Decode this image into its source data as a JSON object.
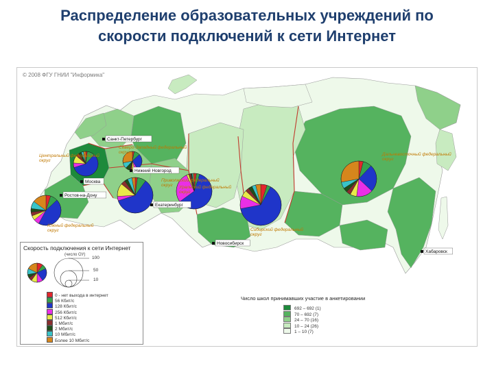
{
  "title": {
    "line1": "Распределение образовательных учреждений по",
    "line2": "скорости подключений к сети Интернет"
  },
  "map": {
    "copyright": "© 2008 ФГУ ГНИИ \"Информика\"",
    "colors": {
      "sea": "#ffffff",
      "border": "#c0392b",
      "level_1": "#1d8a3b",
      "level_2": "#55b35f",
      "level_3": "#8fd08a",
      "level_4": "#c8ebc0",
      "level_5": "#eef9ea"
    },
    "cities": [
      "Санкт-Петербург",
      "Москва",
      "Нижний Новгород",
      "Ростов-на-Дону",
      "Екатеринбург",
      "Новосибирск",
      "Хабаровск"
    ],
    "districts": [
      "Северо-Западный федеральный округ",
      "Центральный федеральный округ",
      "Приволжский федеральный округ",
      "Южный федеральный округ",
      "Уральский федеральный округ",
      "Сибирский федеральный округ",
      "Дальневосточный федеральный округ"
    ]
  },
  "speed_legend": {
    "title": "Скорость подключения к сети Интернет",
    "unit": "(число ОУ)",
    "scale": [
      "100",
      "50",
      "10"
    ],
    "items": [
      {
        "label": "0 - нет выхода в интернет",
        "color": "#e3262d"
      },
      {
        "label": "56 Кбит/с",
        "color": "#36a24d"
      },
      {
        "label": "128 Кбит/с",
        "color": "#1f35c9"
      },
      {
        "label": "256 Кбит/с",
        "color": "#ea2fe6"
      },
      {
        "label": "512 Кбит/с",
        "color": "#e9e94a"
      },
      {
        "label": "1 Мбит/с",
        "color": "#8a2e2e"
      },
      {
        "label": "2 Мбит/с",
        "color": "#1f4f1a"
      },
      {
        "label": "10 Мбит/с",
        "color": "#39c4c8"
      },
      {
        "label": "Более 10 Мбит/с",
        "color": "#d6861c"
      }
    ]
  },
  "density_legend": {
    "title": "Число школ принимавших участие в анкетировании",
    "items": [
      {
        "range": "692 – 692",
        "count": "(1)",
        "color": "#1d8a3b"
      },
      {
        "range": "70 – 692",
        "count": "(7)",
        "color": "#55b35f"
      },
      {
        "range": "24 – 70",
        "count": "(16)",
        "color": "#8fd08a"
      },
      {
        "range": "10 – 24",
        "count": "(26)",
        "color": "#c8ebc0"
      },
      {
        "range": "1 – 10",
        "count": "(7)",
        "color": "#eef9ea"
      }
    ]
  },
  "chart_data": [
    {
      "type": "pie",
      "district": "Северо-Западный федеральный округ",
      "categories": [
        "0",
        "56 Кбит/с",
        "128 Кбит/с",
        "256 Кбит/с",
        "512 Кбит/с",
        "1 Мбит/с",
        "2 Мбит/с",
        "10 Мбит/с",
        "Более 10 Мбит/с"
      ],
      "values": [
        5,
        8,
        45,
        6,
        5,
        4,
        4,
        8,
        15
      ]
    },
    {
      "type": "pie",
      "district": "Центральный федеральный округ",
      "categories": [
        "0",
        "56 Кбит/с",
        "128 Кбит/с",
        "256 Кбит/с",
        "512 Кбит/с",
        "1 Мбит/с",
        "2 Мбит/с",
        "10 Мбит/с",
        "Более 10 Мбит/с"
      ],
      "values": [
        2,
        8,
        60,
        4,
        12,
        4,
        3,
        4,
        3
      ]
    },
    {
      "type": "pie",
      "district": "Приволжский федеральный округ",
      "categories": [
        "0",
        "56 Кбит/с",
        "128 Кбит/с",
        "256 Кбит/с",
        "512 Кбит/с",
        "1 Мбит/с",
        "2 Мбит/с",
        "10 Мбит/с",
        "Более 10 Мбит/с"
      ],
      "values": [
        2,
        10,
        58,
        6,
        10,
        4,
        4,
        3,
        3
      ]
    },
    {
      "type": "pie",
      "district": "Южный федеральный округ",
      "categories": [
        "0",
        "56 Кбит/с",
        "128 Кбит/с",
        "256 Кбит/с",
        "512 Кбит/с",
        "1 Мбит/с",
        "2 Мбит/с",
        "10 Мбит/с",
        "Более 10 Мбит/с"
      ],
      "values": [
        3,
        10,
        28,
        5,
        5,
        3,
        8,
        10,
        28
      ]
    },
    {
      "type": "pie",
      "district": "Уральский федеральный округ",
      "categories": [
        "0",
        "56 Кбит/с",
        "128 Кбит/с",
        "256 Кбит/с",
        "512 Кбит/с",
        "1 Мбит/с",
        "2 Мбит/с",
        "10 Мбит/с",
        "Более 10 Мбит/с"
      ],
      "values": [
        2,
        3,
        60,
        28,
        2,
        2,
        1,
        1,
        1
      ]
    },
    {
      "type": "pie",
      "district": "Сибирский федеральный округ",
      "categories": [
        "0",
        "56 Кбит/с",
        "128 Кбит/с",
        "256 Кбит/с",
        "512 Кбит/с",
        "1 Мбит/с",
        "2 Мбит/с",
        "10 Мбит/с",
        "Более 10 Мбит/с"
      ],
      "values": [
        5,
        3,
        64,
        10,
        5,
        3,
        3,
        3,
        4
      ]
    },
    {
      "type": "pie",
      "district": "Дальневосточный федеральный округ",
      "categories": [
        "0",
        "56 Кбит/с",
        "128 Кбит/с",
        "256 Кбит/с",
        "512 Кбит/с",
        "1 Мбит/с",
        "2 Мбит/с",
        "10 Мбит/с",
        "Более 10 Мбит/с"
      ],
      "values": [
        4,
        8,
        25,
        15,
        6,
        4,
        4,
        6,
        28
      ]
    }
  ]
}
